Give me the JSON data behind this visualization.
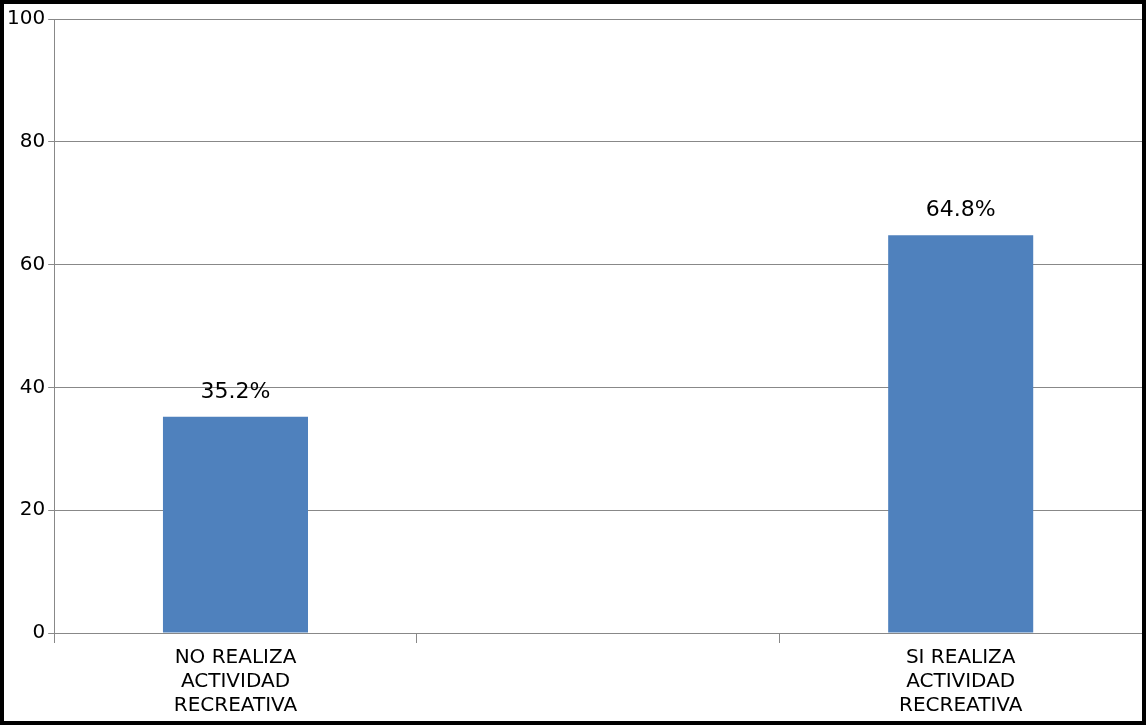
{
  "chart_data": {
    "type": "bar",
    "categories": [
      "NO REALIZA ACTIVIDAD RECREATIVA",
      null,
      "SI REALIZA ACTIVIDAD RECREATIVA"
    ],
    "values": [
      35.2,
      null,
      64.8
    ],
    "value_labels": [
      "35.2%",
      null,
      "64.8%"
    ],
    "color": "#4f81bd",
    "ylim": [
      0,
      100
    ],
    "yticks": [
      0,
      20,
      40,
      60,
      80,
      100
    ],
    "grid": "y",
    "legend": false
  }
}
